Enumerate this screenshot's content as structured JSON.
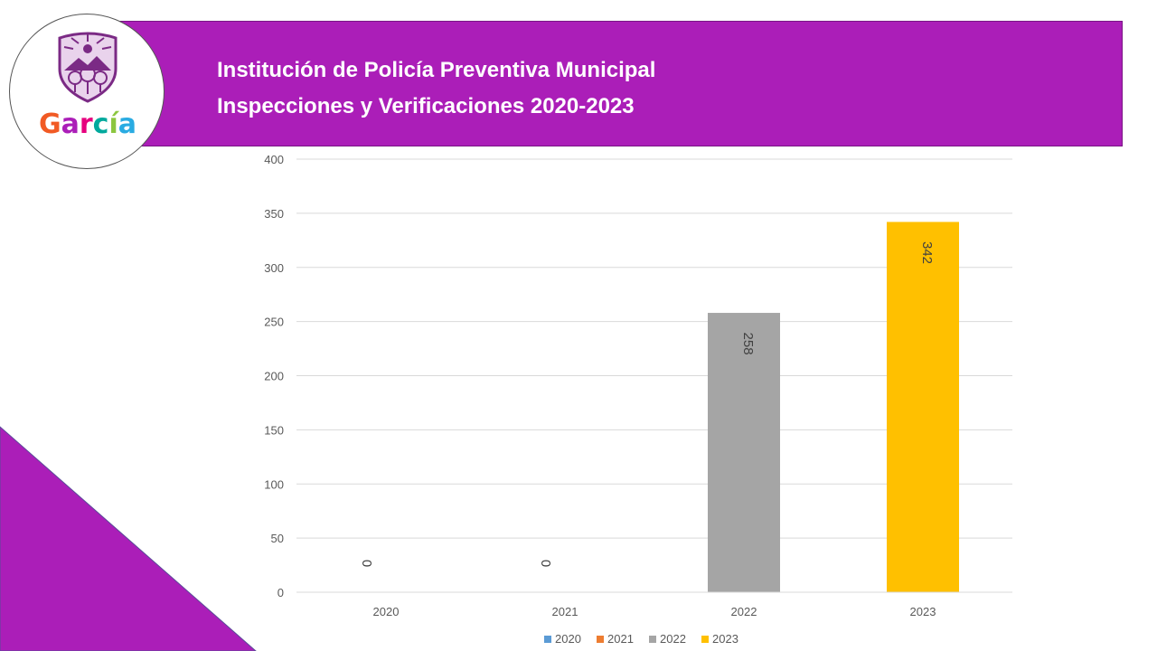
{
  "header": {
    "title_line1": "Institución de Policía Preventiva Municipal",
    "title_line2": "Inspecciones y Verificaciones 2020-2023",
    "band_color": "#ab1eb8"
  },
  "logo": {
    "text": "García",
    "icon": "shield-crest-icon"
  },
  "chart_data": {
    "type": "bar",
    "categories": [
      "2020",
      "2021",
      "2022",
      "2023"
    ],
    "values": [
      0,
      0,
      258,
      342
    ],
    "colors": [
      "#5b9bd5",
      "#ed7d31",
      "#a5a5a5",
      "#ffc000"
    ],
    "series": [
      {
        "name": "2020",
        "color": "#5b9bd5"
      },
      {
        "name": "2021",
        "color": "#ed7d31"
      },
      {
        "name": "2022",
        "color": "#a5a5a5"
      },
      {
        "name": "2023",
        "color": "#ffc000"
      }
    ],
    "ylim": [
      0,
      400
    ],
    "yticks": [
      0,
      50,
      100,
      150,
      200,
      250,
      300,
      350,
      400
    ],
    "grid": true,
    "legend": "bottom",
    "data_labels": [
      "0",
      "0",
      "258",
      "342"
    ]
  }
}
